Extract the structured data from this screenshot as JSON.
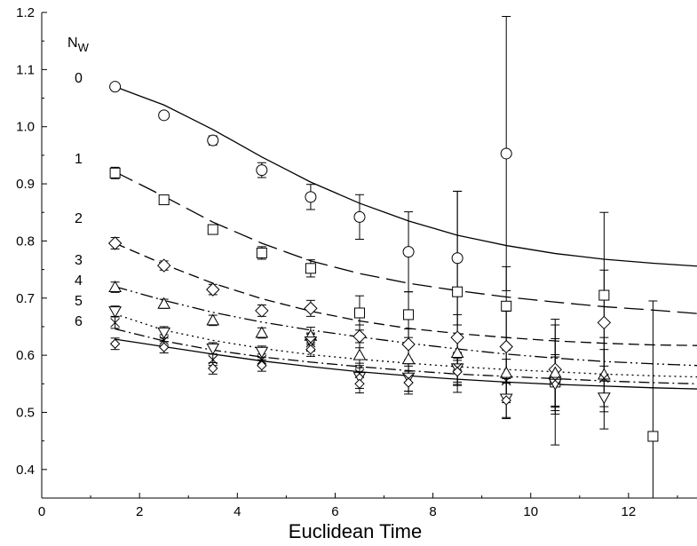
{
  "chart_data": {
    "type": "scatter",
    "title": "",
    "xlabel": "Euclidean Time",
    "ylabel": "",
    "xlim": [
      0,
      13.4
    ],
    "ylim": [
      0.35,
      1.2
    ],
    "x_ticks": [
      0,
      2,
      4,
      6,
      8,
      10,
      12
    ],
    "y_ticks": [
      0.4,
      0.5,
      0.6,
      0.7,
      0.8,
      0.9,
      1.0,
      1.1,
      1.2
    ],
    "legend_title": "N",
    "legend_title_sub": "W",
    "grid": false,
    "series": [
      {
        "name": "0",
        "marker": "circle",
        "line_style": "solid",
        "points": [
          {
            "x": 1.5,
            "y": 1.07,
            "err": 0.006
          },
          {
            "x": 2.5,
            "y": 1.02,
            "err": 0.006
          },
          {
            "x": 3.5,
            "y": 0.976,
            "err": 0.008
          },
          {
            "x": 4.5,
            "y": 0.924,
            "err": 0.013
          },
          {
            "x": 5.5,
            "y": 0.877,
            "err": 0.022
          },
          {
            "x": 6.5,
            "y": 0.842,
            "err": 0.039
          },
          {
            "x": 7.5,
            "y": 0.781,
            "err": 0.07
          },
          {
            "x": 8.5,
            "y": 0.77,
            "err": 0.117
          },
          {
            "x": 9.5,
            "y": 0.953,
            "err": 0.24
          }
        ],
        "fit": [
          [
            1.5,
            1.07
          ],
          [
            2.5,
            1.038
          ],
          [
            3.5,
            0.995
          ],
          [
            4.5,
            0.947
          ],
          [
            5.5,
            0.903
          ],
          [
            6.5,
            0.866
          ],
          [
            7.5,
            0.835
          ],
          [
            8.5,
            0.81
          ],
          [
            9.5,
            0.792
          ],
          [
            10.5,
            0.778
          ],
          [
            11.5,
            0.768
          ],
          [
            12.5,
            0.761
          ],
          [
            13.4,
            0.756
          ]
        ]
      },
      {
        "name": "1",
        "marker": "square",
        "line_style": "long-dash",
        "points": [
          {
            "x": 1.5,
            "y": 0.919,
            "err": 0.01
          },
          {
            "x": 2.5,
            "y": 0.872,
            "err": 0.006
          },
          {
            "x": 3.5,
            "y": 0.82,
            "err": 0.008
          },
          {
            "x": 4.5,
            "y": 0.779,
            "err": 0.011
          },
          {
            "x": 5.5,
            "y": 0.752,
            "err": 0.015
          },
          {
            "x": 6.5,
            "y": 0.674,
            "err": 0.03
          },
          {
            "x": 7.5,
            "y": 0.671,
            "err": 0.04
          },
          {
            "x": 8.5,
            "y": 0.711,
            "err": 0.176
          },
          {
            "x": 9.5,
            "y": 0.686,
            "err": 0.069
          },
          {
            "x": 10.5,
            "y": 0.553,
            "err": 0.11
          },
          {
            "x": 11.5,
            "y": 0.705,
            "err": 0.145
          },
          {
            "x": 12.5,
            "y": 0.458,
            "err": 0.237
          }
        ],
        "fit": [
          [
            1.5,
            0.921
          ],
          [
            2.5,
            0.878
          ],
          [
            3.5,
            0.833
          ],
          [
            4.5,
            0.796
          ],
          [
            5.5,
            0.765
          ],
          [
            6.5,
            0.743
          ],
          [
            7.5,
            0.726
          ],
          [
            8.5,
            0.713
          ],
          [
            9.5,
            0.702
          ],
          [
            10.5,
            0.693
          ],
          [
            11.5,
            0.685
          ],
          [
            12.5,
            0.679
          ],
          [
            13.4,
            0.673
          ]
        ]
      },
      {
        "name": "2",
        "marker": "diamond",
        "line_style": "dash",
        "points": [
          {
            "x": 1.5,
            "y": 0.796,
            "err": 0.01
          },
          {
            "x": 2.5,
            "y": 0.757,
            "err": 0.008
          },
          {
            "x": 3.5,
            "y": 0.715,
            "err": 0.009
          },
          {
            "x": 4.5,
            "y": 0.678,
            "err": 0.01
          },
          {
            "x": 5.5,
            "y": 0.682,
            "err": 0.014
          },
          {
            "x": 6.5,
            "y": 0.633,
            "err": 0.02
          },
          {
            "x": 7.5,
            "y": 0.619,
            "err": 0.027
          },
          {
            "x": 8.5,
            "y": 0.631,
            "err": 0.04
          },
          {
            "x": 9.5,
            "y": 0.615,
            "err": 0.062
          },
          {
            "x": 10.5,
            "y": 0.575,
            "err": 0.078
          },
          {
            "x": 11.5,
            "y": 0.657,
            "err": 0.092
          }
        ],
        "fit": [
          [
            1.5,
            0.796
          ],
          [
            2.5,
            0.759
          ],
          [
            3.5,
            0.726
          ],
          [
            4.5,
            0.699
          ],
          [
            5.5,
            0.677
          ],
          [
            6.5,
            0.66
          ],
          [
            7.5,
            0.647
          ],
          [
            8.5,
            0.638
          ],
          [
            9.5,
            0.631
          ],
          [
            10.5,
            0.625
          ],
          [
            11.5,
            0.621
          ],
          [
            12.5,
            0.618
          ],
          [
            13.4,
            0.617
          ]
        ]
      },
      {
        "name": "3",
        "marker": "triangle-up",
        "line_style": "dash-dot-dot",
        "points": [
          {
            "x": 1.5,
            "y": 0.719,
            "err": 0.009
          },
          {
            "x": 2.5,
            "y": 0.69,
            "err": 0.008
          },
          {
            "x": 3.5,
            "y": 0.661,
            "err": 0.009
          },
          {
            "x": 4.5,
            "y": 0.639,
            "err": 0.009
          },
          {
            "x": 5.5,
            "y": 0.634,
            "err": 0.015
          },
          {
            "x": 6.5,
            "y": 0.6,
            "err": 0.022
          },
          {
            "x": 7.5,
            "y": 0.593,
            "err": 0.025
          },
          {
            "x": 8.5,
            "y": 0.604,
            "err": 0.03
          },
          {
            "x": 9.5,
            "y": 0.569,
            "err": 0.04
          },
          {
            "x": 10.5,
            "y": 0.569,
            "err": 0.06
          },
          {
            "x": 11.5,
            "y": 0.566,
            "err": 0.065
          }
        ],
        "fit": [
          [
            1.5,
            0.72
          ],
          [
            2.5,
            0.696
          ],
          [
            3.5,
            0.675
          ],
          [
            4.5,
            0.658
          ],
          [
            5.5,
            0.644
          ],
          [
            6.5,
            0.632
          ],
          [
            7.5,
            0.621
          ],
          [
            8.5,
            0.611
          ],
          [
            9.5,
            0.602
          ],
          [
            10.5,
            0.595
          ],
          [
            11.5,
            0.589
          ],
          [
            12.5,
            0.585
          ],
          [
            13.4,
            0.582
          ]
        ]
      },
      {
        "name": "4",
        "marker": "triangle-down",
        "line_style": "dotted",
        "points": [
          {
            "x": 1.5,
            "y": 0.677,
            "err": 0.009
          },
          {
            "x": 2.5,
            "y": 0.64,
            "err": 0.01
          },
          {
            "x": 3.5,
            "y": 0.612,
            "err": 0.01
          },
          {
            "x": 4.5,
            "y": 0.606,
            "err": 0.01
          },
          {
            "x": 5.5,
            "y": 0.624,
            "err": 0.015
          },
          {
            "x": 6.5,
            "y": 0.562,
            "err": 0.02
          },
          {
            "x": 7.5,
            "y": 0.561,
            "err": 0.024
          },
          {
            "x": 8.5,
            "y": 0.577,
            "err": 0.028
          },
          {
            "x": 9.5,
            "y": 0.524,
            "err": 0.035
          },
          {
            "x": 10.5,
            "y": 0.55,
            "err": 0.047
          },
          {
            "x": 11.5,
            "y": 0.526,
            "err": 0.055
          }
        ],
        "fit": [
          [
            1.5,
            0.672
          ],
          [
            2.5,
            0.644
          ],
          [
            3.5,
            0.626
          ],
          [
            4.5,
            0.612
          ],
          [
            5.5,
            0.601
          ],
          [
            6.5,
            0.593
          ],
          [
            7.5,
            0.586
          ],
          [
            8.5,
            0.58
          ],
          [
            9.5,
            0.575
          ],
          [
            10.5,
            0.571
          ],
          [
            11.5,
            0.567
          ],
          [
            12.5,
            0.564
          ],
          [
            13.4,
            0.562
          ]
        ]
      },
      {
        "name": "5",
        "marker": "x-cross",
        "line_style": "dash-dot",
        "points": [
          {
            "x": 1.5,
            "y": 0.657,
            "err": 0.01
          },
          {
            "x": 2.5,
            "y": 0.626,
            "err": 0.01
          },
          {
            "x": 3.5,
            "y": 0.592,
            "err": 0.01
          },
          {
            "x": 4.5,
            "y": 0.592,
            "err": 0.01
          },
          {
            "x": 5.5,
            "y": 0.622,
            "err": 0.015
          },
          {
            "x": 6.5,
            "y": 0.568,
            "err": 0.018
          },
          {
            "x": 7.5,
            "y": 0.559,
            "err": 0.022
          },
          {
            "x": 8.5,
            "y": 0.578,
            "err": 0.025
          },
          {
            "x": 9.5,
            "y": 0.555,
            "err": 0.038
          },
          {
            "x": 10.5,
            "y": 0.556,
            "err": 0.045
          },
          {
            "x": 11.5,
            "y": 0.56,
            "err": 0.05
          }
        ],
        "fit": [
          [
            1.5,
            0.646
          ],
          [
            2.5,
            0.625
          ],
          [
            3.5,
            0.609
          ],
          [
            4.5,
            0.597
          ],
          [
            5.5,
            0.588
          ],
          [
            6.5,
            0.58
          ],
          [
            7.5,
            0.573
          ],
          [
            8.5,
            0.567
          ],
          [
            9.5,
            0.563
          ],
          [
            10.5,
            0.559
          ],
          [
            11.5,
            0.555
          ],
          [
            12.5,
            0.552
          ],
          [
            13.4,
            0.55
          ]
        ]
      },
      {
        "name": "6",
        "marker": "diamond-small",
        "line_style": "solid",
        "points": [
          {
            "x": 1.5,
            "y": 0.62,
            "err": 0.01
          },
          {
            "x": 2.5,
            "y": 0.614,
            "err": 0.01
          },
          {
            "x": 3.5,
            "y": 0.577,
            "err": 0.01
          },
          {
            "x": 4.5,
            "y": 0.582,
            "err": 0.01
          },
          {
            "x": 5.5,
            "y": 0.61,
            "err": 0.012
          },
          {
            "x": 6.5,
            "y": 0.55,
            "err": 0.016
          },
          {
            "x": 7.5,
            "y": 0.552,
            "err": 0.02
          },
          {
            "x": 8.5,
            "y": 0.571,
            "err": 0.024
          },
          {
            "x": 9.5,
            "y": 0.521,
            "err": 0.03
          }
        ],
        "fit": [
          [
            1.5,
            0.628
          ],
          [
            2.5,
            0.615
          ],
          [
            3.5,
            0.602
          ],
          [
            4.5,
            0.59
          ],
          [
            5.5,
            0.58
          ],
          [
            6.5,
            0.571
          ],
          [
            7.5,
            0.564
          ],
          [
            8.5,
            0.558
          ],
          [
            9.5,
            0.553
          ],
          [
            10.5,
            0.549
          ],
          [
            11.5,
            0.546
          ],
          [
            12.5,
            0.543
          ],
          [
            13.4,
            0.541
          ]
        ]
      }
    ]
  }
}
